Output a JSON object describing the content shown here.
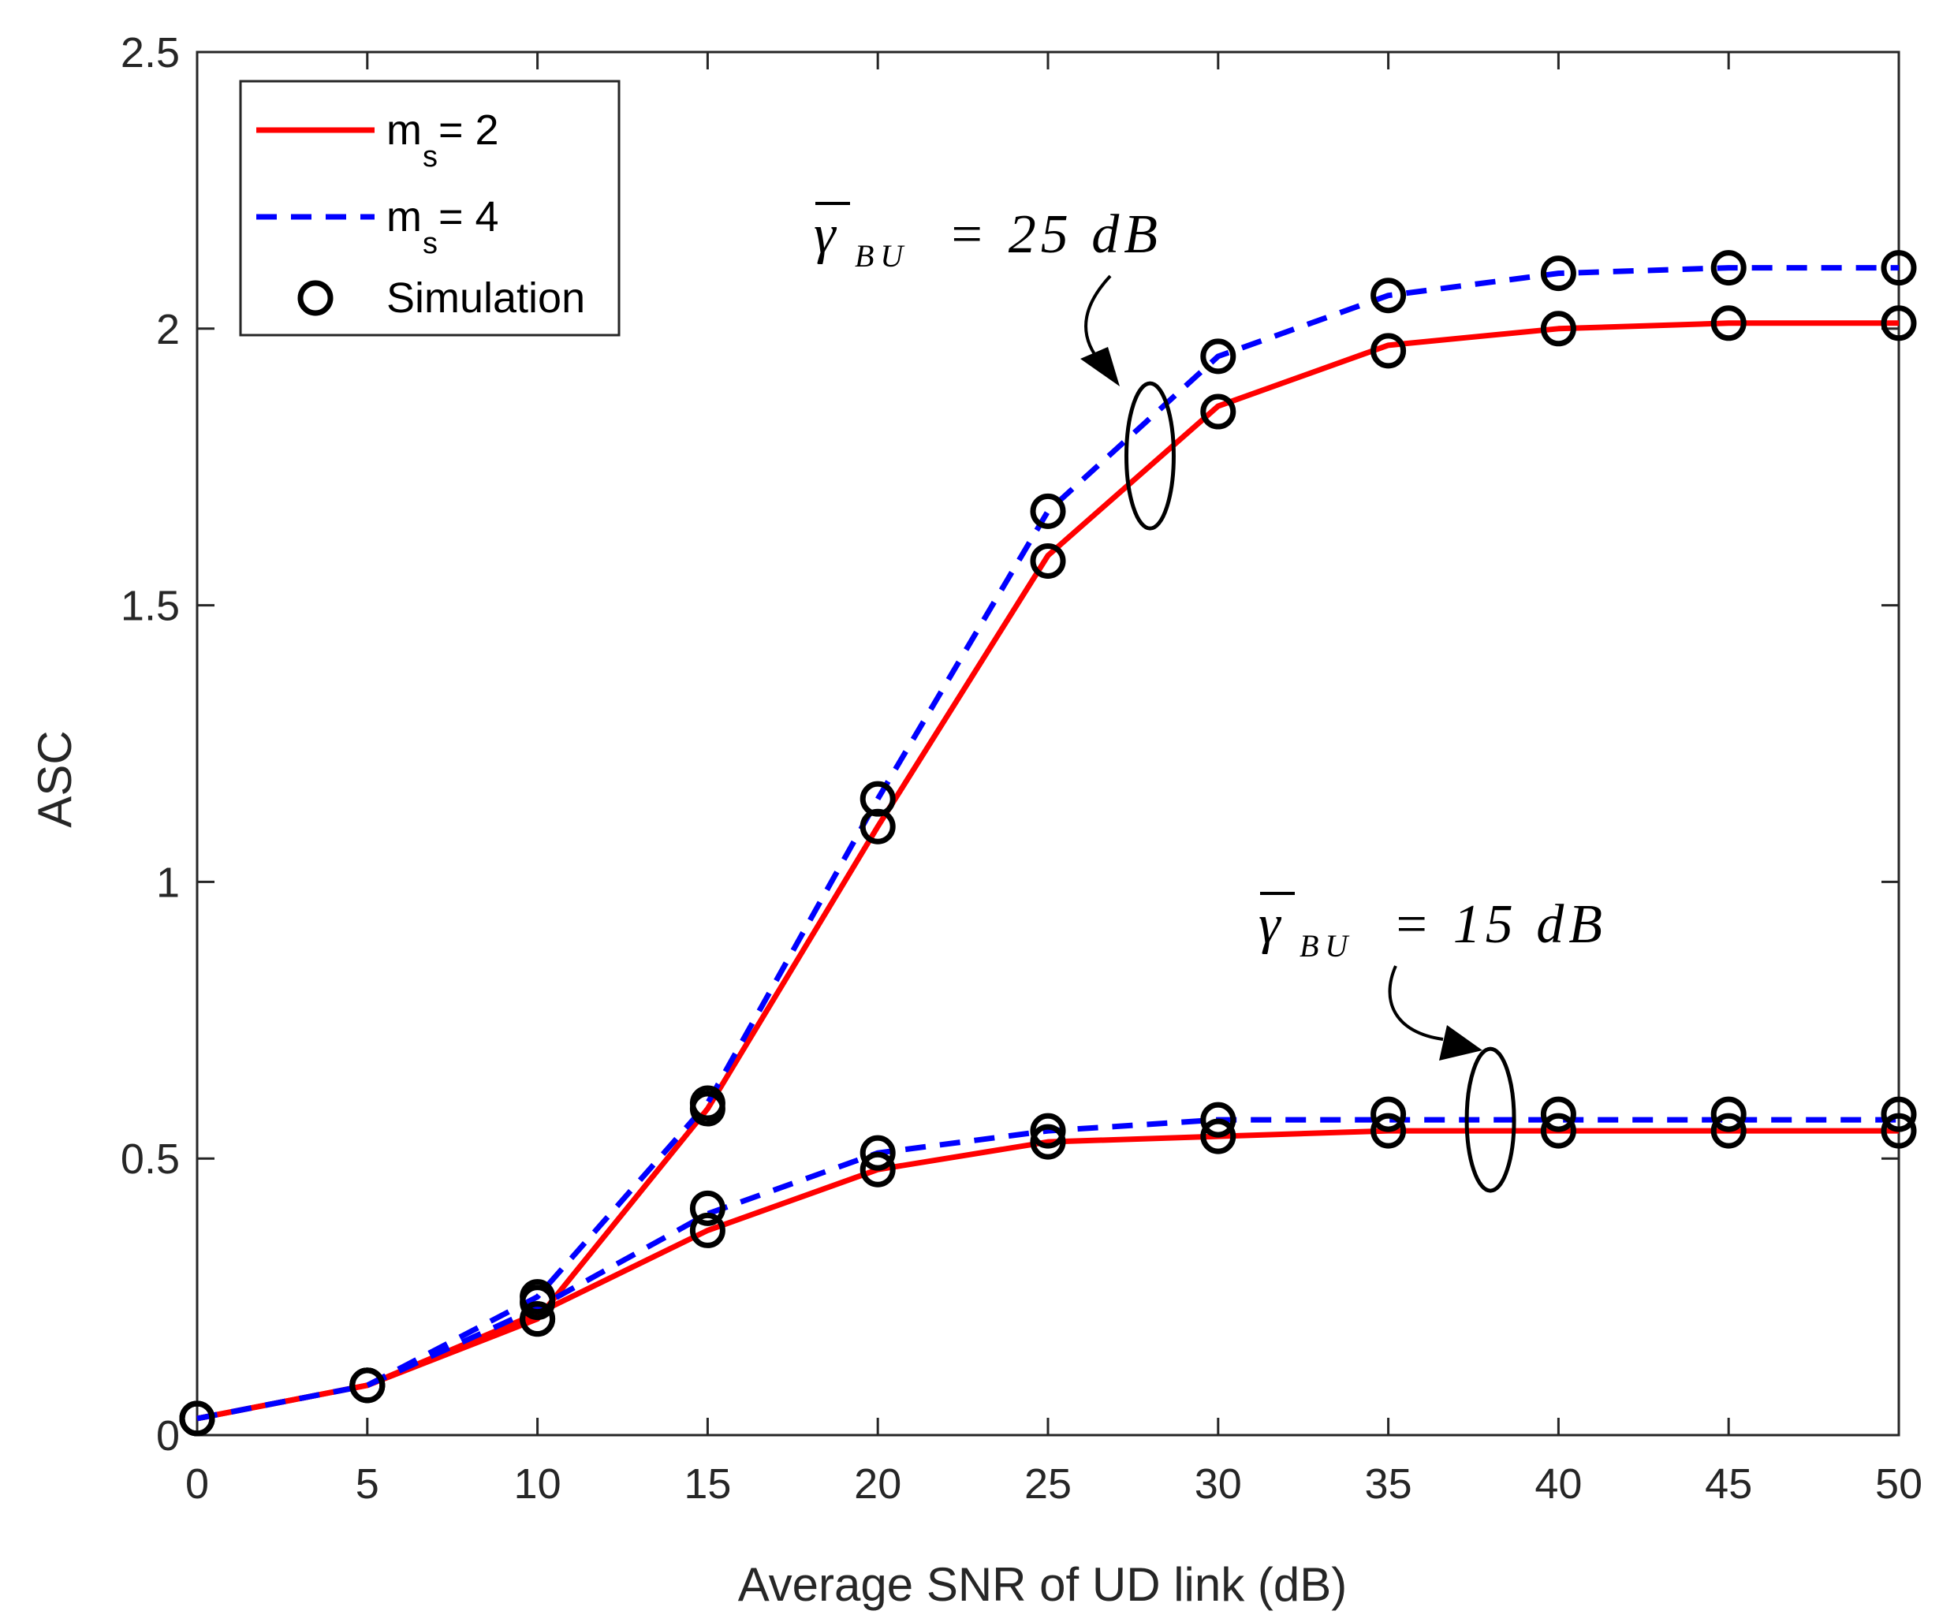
{
  "chart_data": {
    "type": "line",
    "title": "",
    "xlabel": "Average SNR of UD link (dB)",
    "ylabel": "ASC",
    "xlim": [
      0,
      50
    ],
    "ylim": [
      0,
      2.5
    ],
    "x_ticks": [
      0,
      5,
      10,
      15,
      20,
      25,
      30,
      35,
      40,
      45,
      50
    ],
    "x_tick_labels": [
      "0",
      "5",
      "10",
      "15",
      "20",
      "25",
      "30",
      "35",
      "40",
      "45",
      "50"
    ],
    "y_ticks": [
      0,
      0.5,
      1,
      1.5,
      2,
      2.5
    ],
    "y_tick_labels": [
      "0",
      "0.5",
      "1",
      "1.5",
      "2",
      "2.5"
    ],
    "grid": false,
    "legend": {
      "placement": "top-left",
      "entries": [
        {
          "main": "m",
          "sub": "s",
          "rest": " = 2",
          "style": "solid",
          "color": "#ff0000"
        },
        {
          "main": "m",
          "sub": "s",
          "rest": " = 4",
          "style": "dashed",
          "color": "#0000ff"
        },
        {
          "main": "Simulation",
          "sub": "",
          "rest": "",
          "style": "marker",
          "color": "#000000"
        }
      ]
    },
    "x": [
      0,
      5,
      10,
      15,
      20,
      25,
      30,
      35,
      40,
      45,
      50
    ],
    "series": [
      {
        "name": "ms = 2, γBU = 25 dB",
        "style": "solid",
        "color": "#ff0000",
        "values": [
          0.03,
          0.09,
          0.21,
          0.59,
          1.1,
          1.59,
          1.86,
          1.97,
          2.0,
          2.01,
          2.01
        ]
      },
      {
        "name": "ms = 4, γBU = 25 dB",
        "style": "dashed",
        "color": "#0000ff",
        "values": [
          0.03,
          0.09,
          0.25,
          0.6,
          1.15,
          1.67,
          1.95,
          2.06,
          2.1,
          2.11,
          2.11
        ]
      },
      {
        "name": "ms = 2, γBU = 15 dB",
        "style": "solid",
        "color": "#ff0000",
        "values": [
          0.03,
          0.09,
          0.22,
          0.37,
          0.48,
          0.53,
          0.54,
          0.55,
          0.55,
          0.55,
          0.55
        ]
      },
      {
        "name": "ms = 4, γBU = 15 dB",
        "style": "dashed",
        "color": "#0000ff",
        "values": [
          0.03,
          0.09,
          0.23,
          0.4,
          0.51,
          0.55,
          0.57,
          0.57,
          0.57,
          0.57,
          0.57
        ]
      }
    ],
    "simulation": {
      "x": [
        0,
        5,
        10,
        15,
        20,
        25,
        30,
        35,
        40,
        45,
        50
      ],
      "series": [
        [
          0.03,
          0.09,
          0.21,
          0.59,
          1.1,
          1.58,
          1.85,
          1.96,
          2.0,
          2.01,
          2.01
        ],
        [
          0.03,
          0.09,
          0.25,
          0.6,
          1.15,
          1.67,
          1.95,
          2.06,
          2.1,
          2.11,
          2.11
        ],
        [
          0.03,
          0.09,
          0.21,
          0.37,
          0.48,
          0.53,
          0.54,
          0.55,
          0.55,
          0.55,
          0.55
        ],
        [
          0.03,
          0.09,
          0.24,
          0.41,
          0.51,
          0.55,
          0.57,
          0.58,
          0.58,
          0.58,
          0.58
        ]
      ]
    },
    "annotations": [
      {
        "id": "upper",
        "symbol": "γ",
        "sub": "BU",
        "text": "= 25 dB",
        "x": 28,
        "y": 1.77
      },
      {
        "id": "lower",
        "symbol": "γ",
        "sub": "BU",
        "text": "= 15 dB",
        "x": 38,
        "y": 0.57
      }
    ]
  }
}
